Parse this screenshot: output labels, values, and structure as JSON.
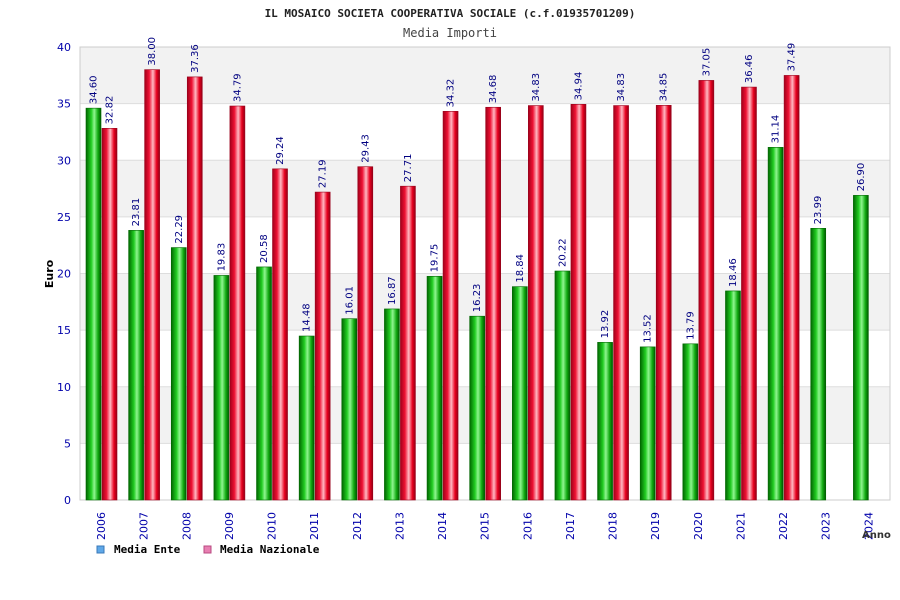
{
  "chart_data": {
    "type": "bar",
    "title": "IL MOSAICO SOCIETA COOPERATIVA SOCIALE (c.f.01935701209)",
    "subtitle": "Media Importi",
    "xlabel": "Anno",
    "ylabel": "Euro",
    "ylim": [
      0,
      40
    ],
    "yticks": [
      "0",
      "5",
      "10",
      "15",
      "20",
      "25",
      "30",
      "35",
      "40"
    ],
    "categories": [
      "2006",
      "2007",
      "2008",
      "2009",
      "2010",
      "2011",
      "2012",
      "2013",
      "2014",
      "2015",
      "2016",
      "2017",
      "2018",
      "2019",
      "2020",
      "2021",
      "2022",
      "2023",
      "2024"
    ],
    "series": [
      {
        "name": "Media Ente",
        "values": [
          34.6,
          23.81,
          22.29,
          19.83,
          20.58,
          14.48,
          16.01,
          16.87,
          19.75,
          16.23,
          18.84,
          20.22,
          13.92,
          13.52,
          13.79,
          18.46,
          31.14,
          23.99,
          26.9
        ],
        "labels": [
          "34.60",
          "23.81",
          "22.29",
          "19.83",
          "20.58",
          "14.48",
          "16.01",
          "16.87",
          "19.75",
          "16.23",
          "18.84",
          "20.22",
          "13.92",
          "13.52",
          "13.79",
          "18.46",
          "31.14",
          "23.99",
          "26.90"
        ]
      },
      {
        "name": "Media Nazionale",
        "values": [
          32.82,
          38.0,
          37.36,
          34.79,
          29.24,
          27.19,
          29.43,
          27.71,
          34.32,
          34.68,
          34.83,
          34.94,
          34.83,
          34.85,
          37.05,
          36.46,
          37.49,
          null,
          null
        ],
        "labels": [
          "32.82",
          "38.00",
          "37.36",
          "34.79",
          "29.24",
          "27.19",
          "29.43",
          "27.71",
          "34.32",
          "34.68",
          "34.83",
          "34.94",
          "34.83",
          "34.85",
          "37.05",
          "36.46",
          "37.49",
          null,
          null
        ]
      }
    ],
    "legend": [
      {
        "name": "Media Ente",
        "color": "#5fa8e8"
      },
      {
        "name": "Media Nazionale",
        "color": "#e87fb2"
      }
    ],
    "legend_position": "bottom-left",
    "grid": true,
    "colors": {
      "ente": "#00b300",
      "ente_light": "#7cf07c",
      "ente_dark": "#006600",
      "nazionale": "#e8001e",
      "nazionale_light": "#ffb3bd",
      "nazionale_dark": "#99001a",
      "band": "#f2f2f2",
      "axis_text": "#0000aa",
      "label_text": "#000080"
    }
  }
}
